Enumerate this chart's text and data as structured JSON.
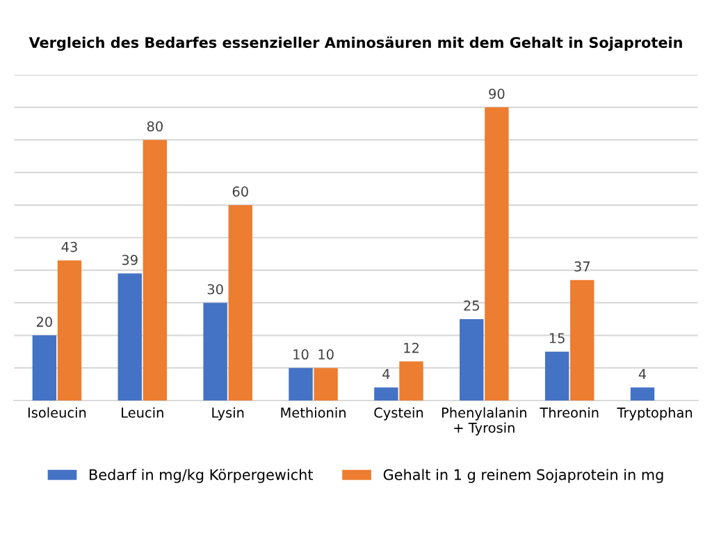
{
  "chart_data": {
    "type": "bar",
    "title": "Vergleich des Bedarfes essenzieller Aminosäuren mit dem Gehalt in Sojaprotein",
    "categories": [
      "Isoleucin",
      "Leucin",
      "Lysin",
      "Methionin",
      "Cystein",
      "Phenylalanin\n+ Tyrosin",
      "Threonin",
      "Tryptophan"
    ],
    "series": [
      {
        "name": "Bedarf in mg/kg Körpergewicht",
        "color": "#4472c4",
        "values": [
          20,
          39,
          30,
          10,
          4,
          25,
          15,
          4
        ]
      },
      {
        "name": "Gehalt in 1 g reinem Sojaprotein in mg",
        "color": "#ed7d31",
        "values": [
          43,
          80,
          60,
          10,
          12,
          90,
          37,
          null
        ]
      }
    ],
    "ylim": [
      0,
      100
    ],
    "yticks": [
      {
        "value": 0,
        "label": null
      },
      {
        "value": 10,
        "label": null
      },
      {
        "value": 20,
        "label": null
      },
      {
        "value": 30,
        "label": null
      },
      {
        "value": 40,
        "label": null
      },
      {
        "value": 50,
        "label": null
      },
      {
        "value": 60,
        "label": null
      },
      {
        "value": 70,
        "label": null
      },
      {
        "value": 80,
        "label": null
      },
      {
        "value": 90,
        "label": null
      },
      {
        "value": 100,
        "label": null
      }
    ],
    "grid": "y",
    "legend": "bottom",
    "data_labels": true,
    "tick_labels": "x"
  }
}
